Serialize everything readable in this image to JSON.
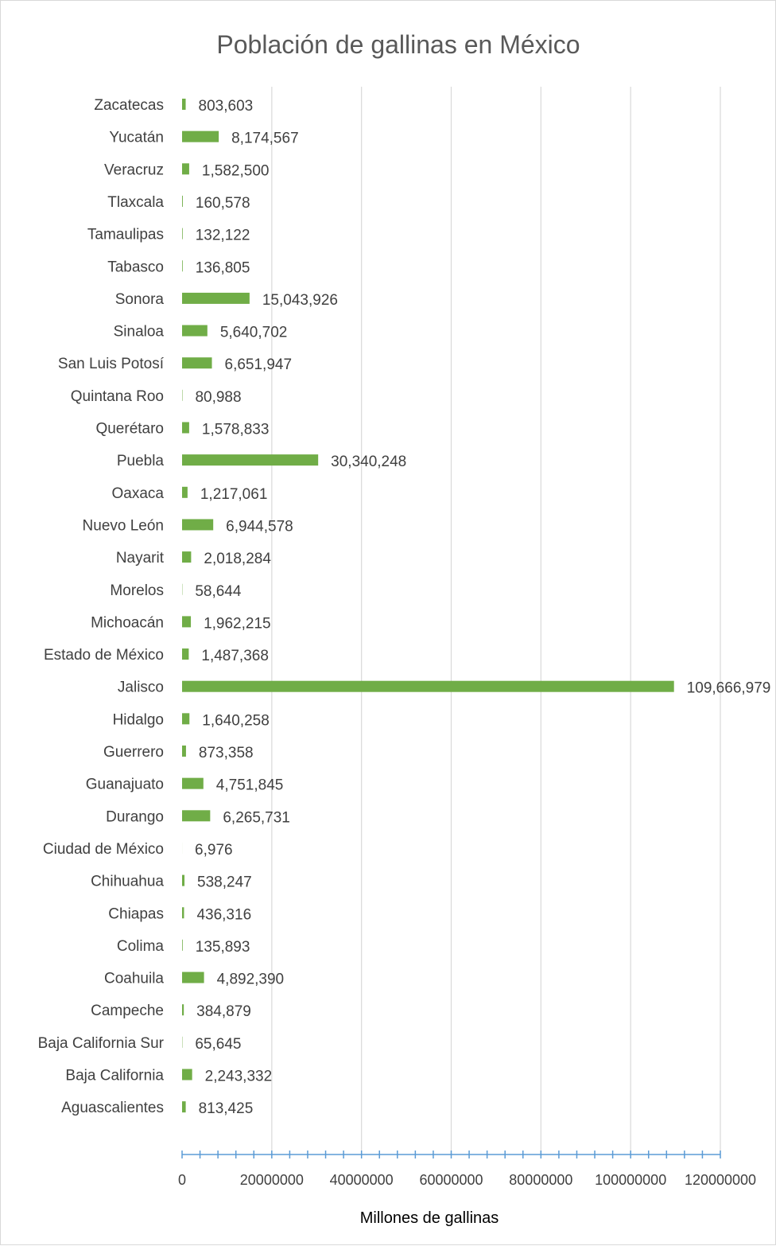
{
  "chart_data": {
    "type": "bar",
    "orientation": "horizontal",
    "title": "Población de gallinas en México",
    "xlabel": "Millones de gallinas",
    "ylabel": "",
    "xlim": [
      0,
      120000000
    ],
    "x_ticks": [
      0,
      20000000,
      40000000,
      60000000,
      80000000,
      100000000,
      120000000
    ],
    "x_tick_labels": [
      "0",
      "20000000",
      "40000000",
      "60000000",
      "80000000",
      "100000000",
      "120000000"
    ],
    "grid": "vertical major gridlines",
    "legend": "none",
    "bar_color": "#70ad47",
    "axis_color": "#5b9bd5",
    "categories": [
      "Zacatecas",
      "Yucatán",
      "Veracruz",
      "Tlaxcala",
      "Tamaulipas",
      "Tabasco",
      "Sonora",
      "Sinaloa",
      "San Luis Potosí",
      "Quintana Roo",
      "Querétaro",
      "Puebla",
      "Oaxaca",
      "Nuevo León",
      "Nayarit",
      "Morelos",
      "Michoacán",
      "Estado de México",
      "Jalisco",
      "Hidalgo",
      "Guerrero",
      "Guanajuato",
      "Durango",
      "Ciudad de México",
      "Chihuahua",
      "Chiapas",
      "Colima",
      "Coahuila",
      "Campeche",
      "Baja California Sur",
      "Baja California",
      "Aguascalientes"
    ],
    "values": [
      803603,
      8174567,
      1582500,
      160578,
      132122,
      136805,
      15043926,
      5640702,
      6651947,
      80988,
      1578833,
      30340248,
      1217061,
      6944578,
      2018284,
      58644,
      1962215,
      1487368,
      109666979,
      1640258,
      873358,
      4751845,
      6265731,
      6976,
      538247,
      436316,
      135893,
      4892390,
      384879,
      65645,
      2243332,
      813425
    ],
    "value_labels": [
      "803,603",
      "8,174,567",
      "1,582,500",
      "160,578",
      "132,122",
      "136,805",
      "15,043,926",
      "5,640,702",
      "6,651,947",
      "80,988",
      "1,578,833",
      "30,340,248",
      "1,217,061",
      "6,944,578",
      "2,018,284",
      "58,644",
      "1,962,215",
      "1,487,368",
      "109,666,979",
      "1,640,258",
      "873,358",
      "4,751,845",
      "6,265,731",
      "6,976",
      "538,247",
      "436,316",
      "135,893",
      "4,892,390",
      "384,879",
      "65,645",
      "2,243,332",
      "813,425"
    ]
  }
}
